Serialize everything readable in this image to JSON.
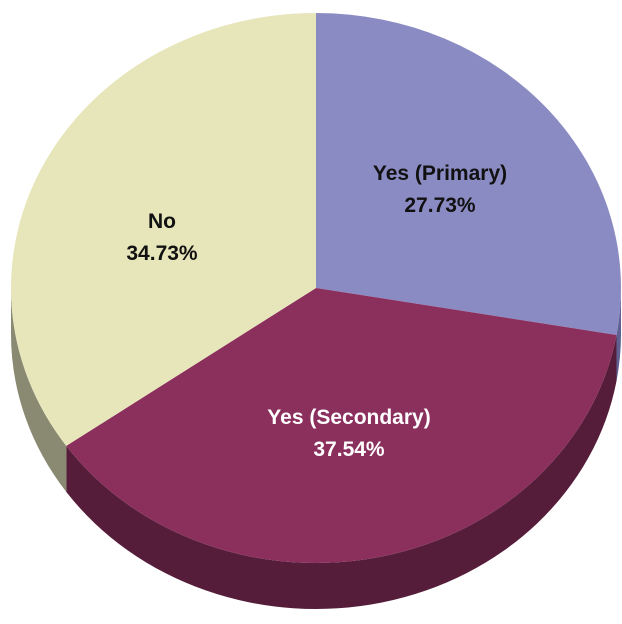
{
  "chart_data": {
    "type": "pie",
    "slices": [
      {
        "label": "Yes (Primary)",
        "value": 27.73,
        "value_label": "27.73%",
        "color": "#8b8bc4",
        "side_color": "#5f5f92",
        "text_color": "#111111"
      },
      {
        "label": "Yes (Secondary)",
        "value": 37.54,
        "value_label": "37.54%",
        "color": "#8b2f5d",
        "side_color": "#561d3a",
        "text_color": "#ffffff"
      },
      {
        "label": "No",
        "value": 34.73,
        "value_label": "34.73%",
        "color": "#e7e6bb",
        "side_color": "#8a8971",
        "text_color": "#111111"
      }
    ]
  }
}
